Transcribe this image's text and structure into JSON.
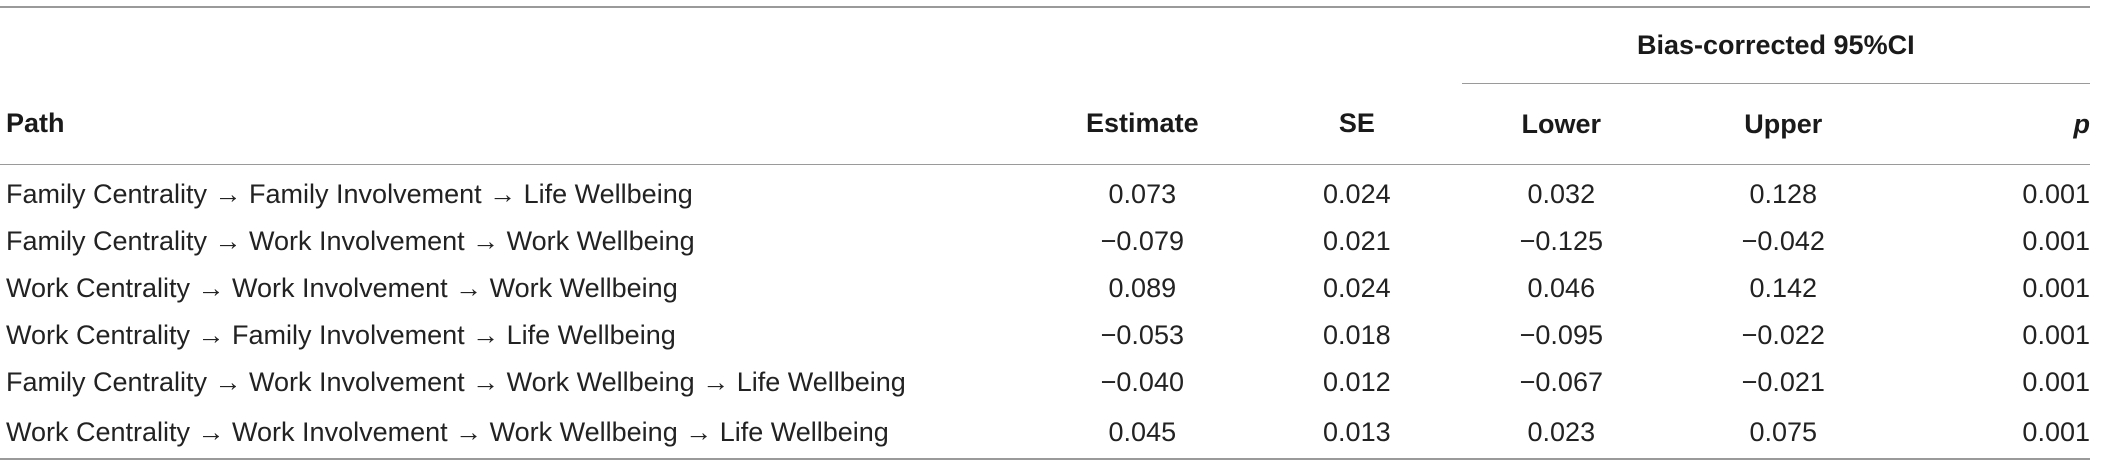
{
  "table": {
    "group_header": "Bias-corrected 95%CI",
    "columns": {
      "path": "Path",
      "estimate": "Estimate",
      "se": "SE",
      "lower": "Lower",
      "upper": "Upper",
      "p": "p"
    },
    "rows": [
      {
        "path": "Family Centrality → Family Involvement → Life Wellbeing",
        "estimate": "0.073",
        "se": "0.024",
        "lower": "0.032",
        "upper": "0.128",
        "p": "0.001"
      },
      {
        "path": "Family Centrality → Work Involvement → Work Wellbeing",
        "estimate": "−0.079",
        "se": "0.021",
        "lower": "−0.125",
        "upper": "−0.042",
        "p": "0.001"
      },
      {
        "path": "Work Centrality → Work Involvement → Work Wellbeing",
        "estimate": "0.089",
        "se": "0.024",
        "lower": "0.046",
        "upper": "0.142",
        "p": "0.001"
      },
      {
        "path": "Work Centrality → Family Involvement → Life Wellbeing",
        "estimate": "−0.053",
        "se": "0.018",
        "lower": "−0.095",
        "upper": "−0.022",
        "p": "0.001"
      },
      {
        "path": "Family Centrality → Work Involvement → Work Wellbeing → Life Wellbeing",
        "estimate": "−0.040",
        "se": "0.012",
        "lower": "−0.067",
        "upper": "−0.021",
        "p": "0.001"
      },
      {
        "path": "Work Centrality → Work Involvement → Work Wellbeing → Life Wellbeing",
        "estimate": "0.045",
        "se": "0.013",
        "lower": "0.023",
        "upper": "0.075",
        "p": "0.001"
      }
    ]
  }
}
